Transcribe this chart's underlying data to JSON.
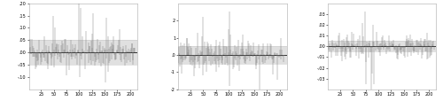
{
  "n_points": 209,
  "x_ticks": [
    25,
    50,
    75,
    100,
    125,
    150,
    175,
    200
  ],
  "panel1": {
    "ylim": [
      -0.15,
      0.2
    ],
    "yticks": [
      -0.1,
      -0.05,
      0.0,
      0.05,
      0.1,
      0.15,
      0.2
    ],
    "ytick_labels": [
      "-.10",
      "-.05",
      ".00",
      ".05",
      ".10",
      ".15",
      ".20"
    ],
    "band_lo": -0.05,
    "band_hi": 0.05,
    "std": 0.035,
    "seed": 42,
    "spikes": [
      [
        48,
        0.15
      ],
      [
        52,
        0.1
      ],
      [
        99,
        0.2
      ],
      [
        100,
        -0.1
      ],
      [
        101,
        0.18
      ],
      [
        127,
        0.16
      ],
      [
        150,
        -0.12
      ],
      [
        153,
        0.14
      ],
      [
        155,
        -0.08
      ]
    ]
  },
  "panel2": {
    "ylim": [
      -2.0,
      3.0
    ],
    "yticks": [
      -2.0,
      -1.0,
      0.0,
      1.0,
      2.0
    ],
    "ytick_labels": [
      "-2",
      "-1",
      ".0",
      "1",
      "2"
    ],
    "band_lo": -0.5,
    "band_hi": 0.5,
    "std": 0.45,
    "seed": 123,
    "spikes": [
      [
        37,
        1.3
      ],
      [
        48,
        2.2
      ],
      [
        49,
        -1.2
      ],
      [
        55,
        -1.0
      ],
      [
        75,
        0.9
      ],
      [
        99,
        1.5
      ],
      [
        100,
        -1.8
      ],
      [
        127,
        1.2
      ],
      [
        160,
        -2.0
      ],
      [
        101,
        2.5
      ]
    ]
  },
  "panel3": {
    "ylim": [
      -0.04,
      0.04
    ],
    "yticks": [
      -0.03,
      -0.02,
      -0.01,
      0.0,
      0.01,
      0.02,
      0.03
    ],
    "ytick_labels": [
      "-.03",
      "-.02",
      "-.01",
      ".00",
      ".01",
      ".02",
      ".03"
    ],
    "band_lo": -0.005,
    "band_hi": 0.005,
    "std": 0.006,
    "seed": 7,
    "spikes": [
      [
        68,
        0.022
      ],
      [
        73,
        0.032
      ],
      [
        74,
        -0.015
      ],
      [
        75,
        -0.035
      ],
      [
        85,
        -0.04
      ],
      [
        87,
        -0.025
      ],
      [
        88,
        0.02
      ],
      [
        90,
        -0.035
      ]
    ]
  },
  "line_color": "#707070",
  "band_color": "#e0e0e0",
  "zero_color": "#303030",
  "background": "#ffffff",
  "spine_color": "#aaaaaa"
}
